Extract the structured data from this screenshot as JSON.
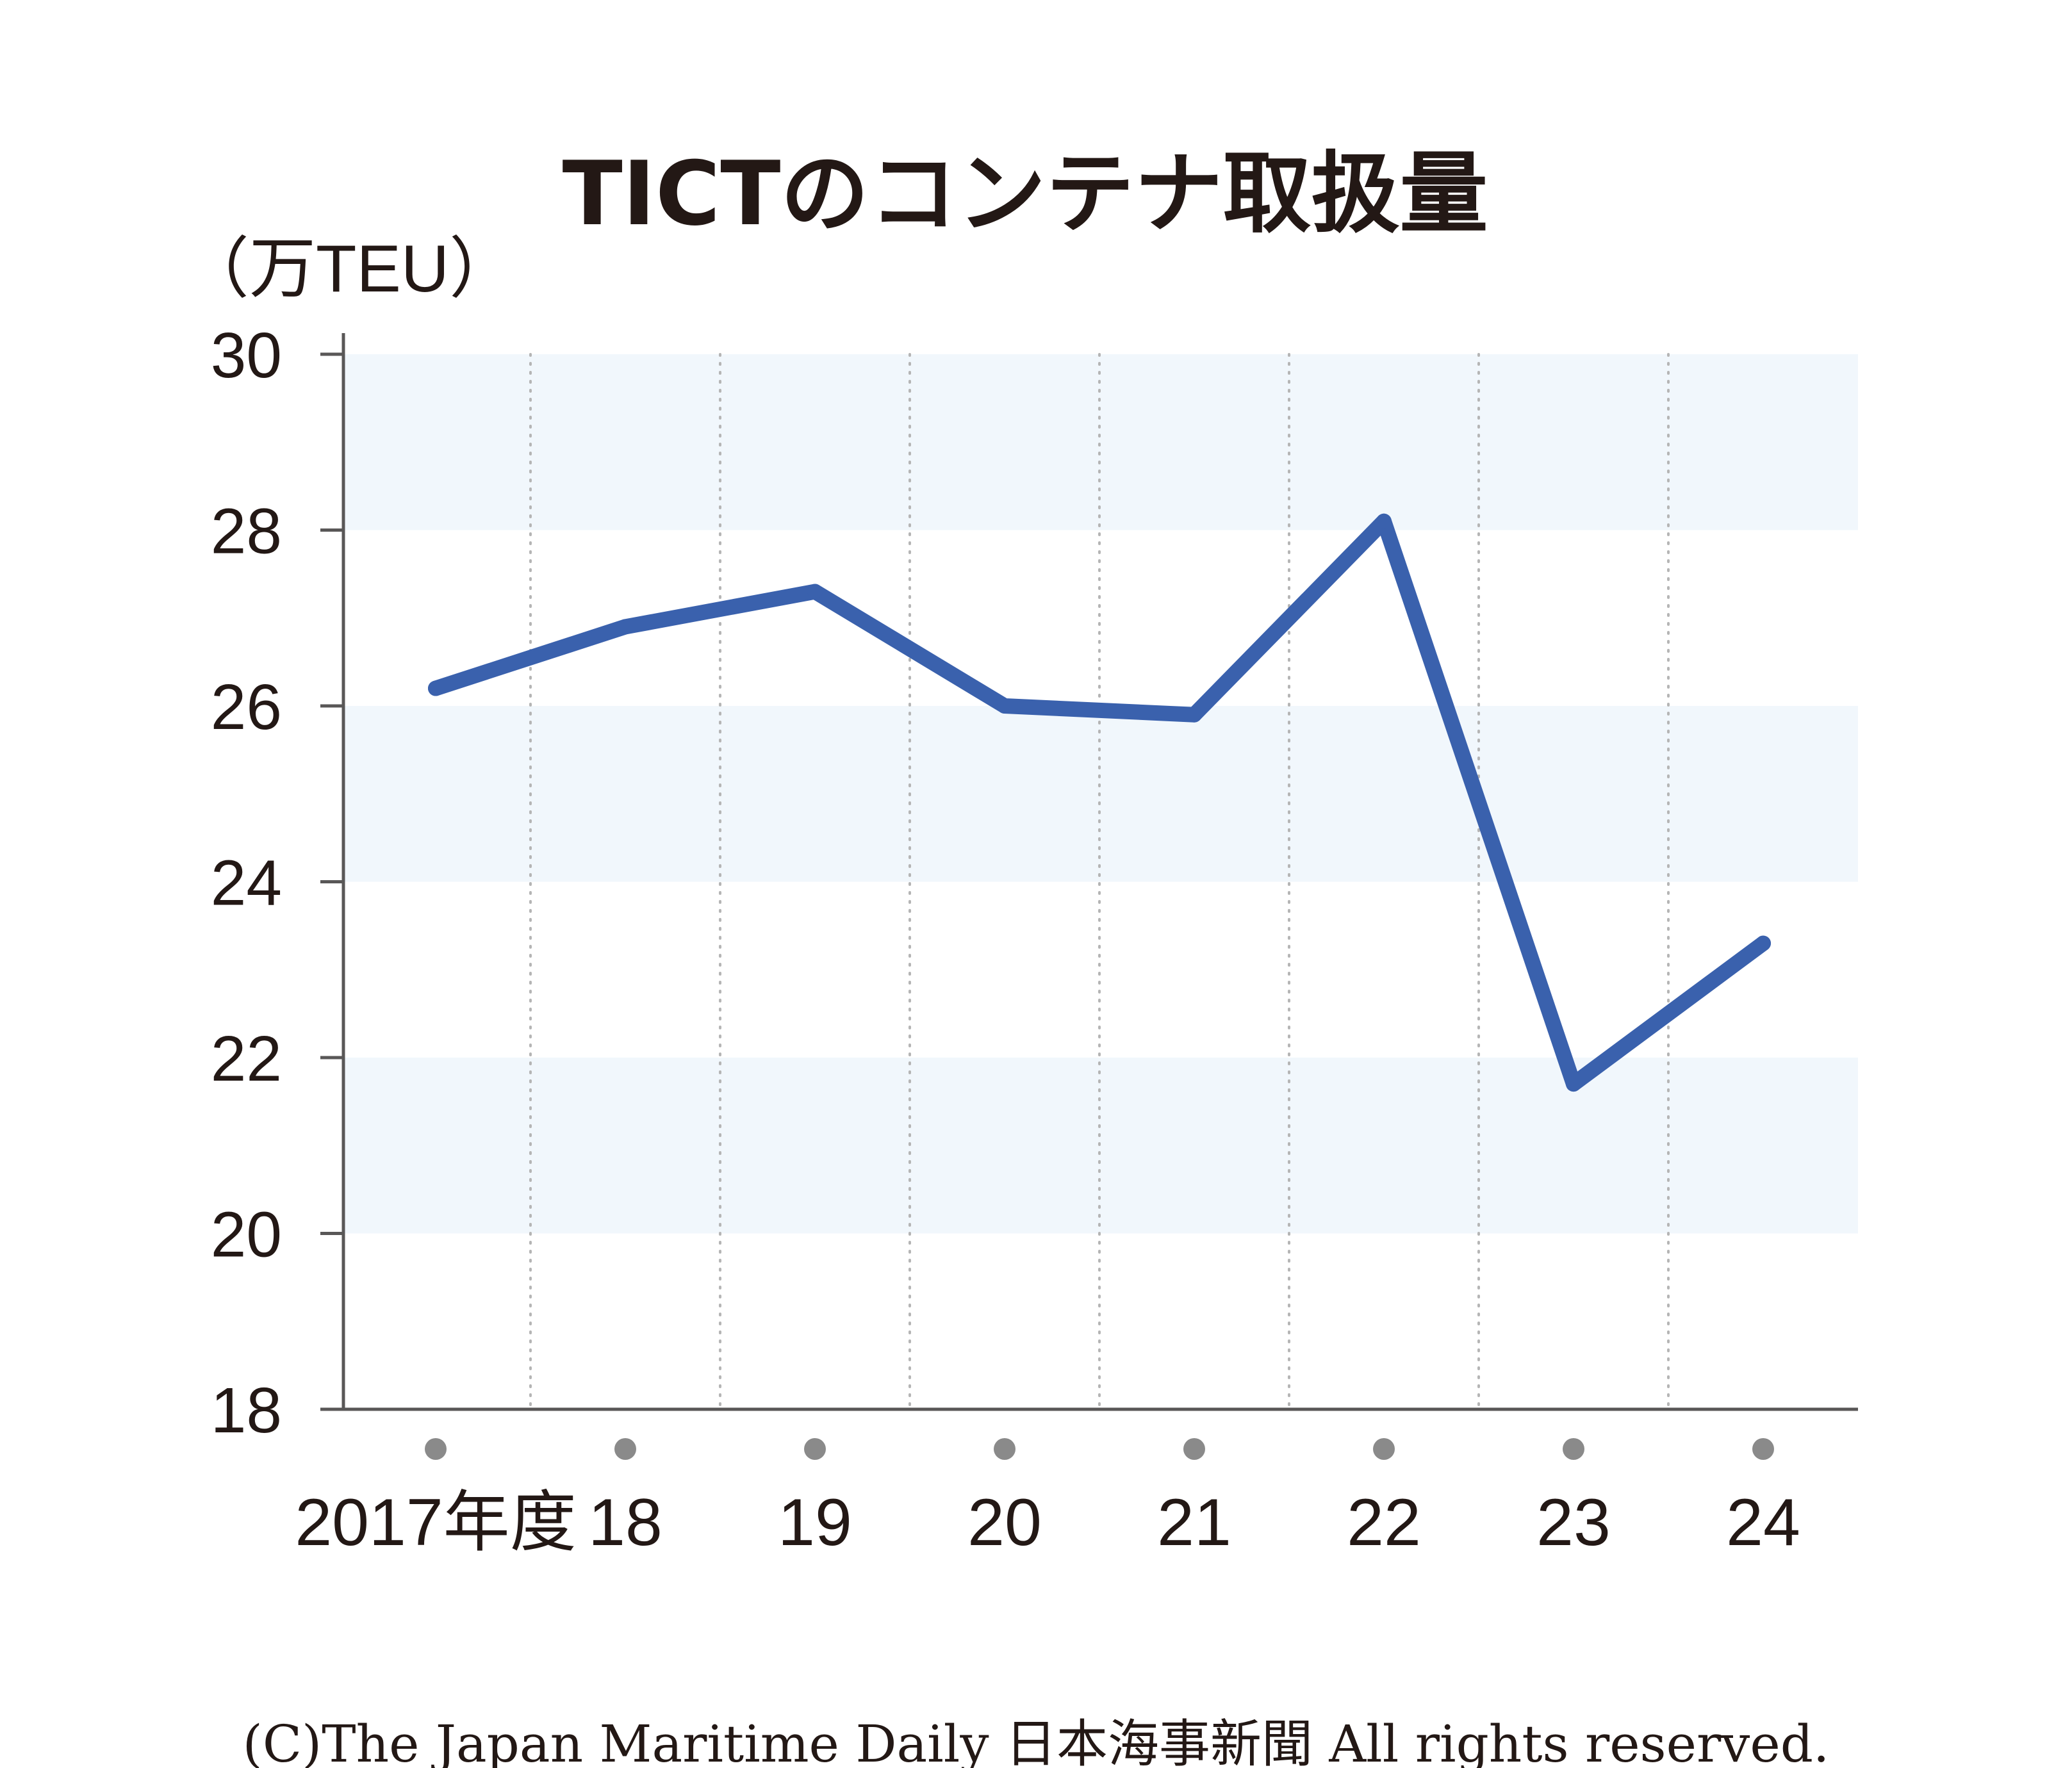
{
  "chart_data": {
    "type": "line",
    "title": "TICTのコンテナ取扱量",
    "unit_label": "（万TEU）",
    "categories": [
      "2017年度",
      "18",
      "19",
      "20",
      "21",
      "22",
      "23",
      "24"
    ],
    "series": [
      {
        "values": [
          26.2,
          26.9,
          27.3,
          26.0,
          25.9,
          28.1,
          21.7,
          23.3
        ]
      }
    ],
    "yticks": [
      "30",
      "28",
      "26",
      "24",
      "22",
      "20",
      "18"
    ],
    "ylim": [
      18,
      30
    ],
    "grid": "alternating horizontal bands, dotted vertical lines",
    "colors": {
      "line": "#3a61ad",
      "band": "#f1f7fc",
      "axis": "#595757",
      "marker": "#8a8a8a",
      "text": "#231815"
    }
  },
  "footer": {
    "credit": "(C)The Japan Maritime Daily 日本海事新聞 All rights reserved."
  }
}
